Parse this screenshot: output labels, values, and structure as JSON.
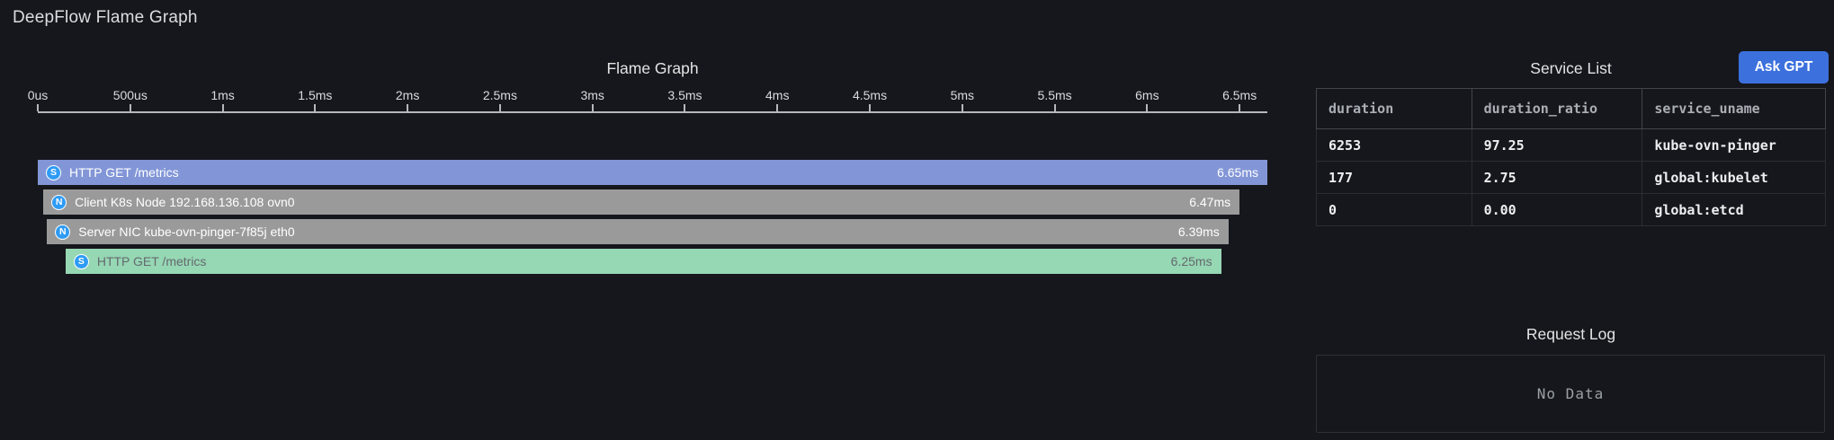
{
  "page": {
    "title": "DeepFlow Flame Graph"
  },
  "flame_panel": {
    "title": "Flame Graph",
    "axis": {
      "ticks": [
        "0us",
        "500us",
        "1ms",
        "1.5ms",
        "2ms",
        "2.5ms",
        "3ms",
        "3.5ms",
        "4ms",
        "4.5ms",
        "5ms",
        "5.5ms",
        "6ms",
        "6.5ms"
      ],
      "tick_interval_ms": 0.5,
      "max_ms": 6.65
    },
    "spans": [
      {
        "icon_letter": "S",
        "icon_name": "s-circle-icon",
        "label": "HTTP GET /metrics",
        "duration_label": "6.65ms",
        "start_ms": 0.0,
        "duration_ms": 6.65,
        "color": "#8296d7",
        "text_color": "#ffffff"
      },
      {
        "icon_letter": "N",
        "icon_name": "n-circle-icon",
        "label": "Client K8s Node 192.168.136.108 ovn0",
        "duration_label": "6.47ms",
        "start_ms": 0.03,
        "duration_ms": 6.47,
        "color": "#9a9a9a",
        "text_color": "#ffffff"
      },
      {
        "icon_letter": "N",
        "icon_name": "n-circle-icon",
        "label": "Server NIC kube-ovn-pinger-7f85j eth0",
        "duration_label": "6.39ms",
        "start_ms": 0.05,
        "duration_ms": 6.39,
        "color": "#9a9a9a",
        "text_color": "#ffffff"
      },
      {
        "icon_letter": "S",
        "icon_name": "s-circle-icon",
        "label": "HTTP GET /metrics",
        "duration_label": "6.25ms",
        "start_ms": 0.15,
        "duration_ms": 6.25,
        "color": "#96d7b4",
        "text_color": "#646a6e"
      }
    ],
    "icon_color": "#2e9bf5"
  },
  "service_list": {
    "title": "Service List",
    "ask_gpt_label": "Ask GPT",
    "columns": [
      "duration",
      "duration_ratio",
      "service_uname"
    ],
    "rows": [
      [
        "6253",
        "97.25",
        "kube-ovn-pinger"
      ],
      [
        "177",
        "2.75",
        "global:kubelet"
      ],
      [
        "0",
        "0.00",
        "global:etcd"
      ]
    ]
  },
  "request_log": {
    "title": "Request Log",
    "empty_text": "No Data"
  },
  "colors": {
    "background": "#16171c",
    "axis_line": "#b4b7bd",
    "button_blue": "#3c70dd",
    "table_header_border": "#42454c",
    "table_body_border": "#2b2d33"
  }
}
